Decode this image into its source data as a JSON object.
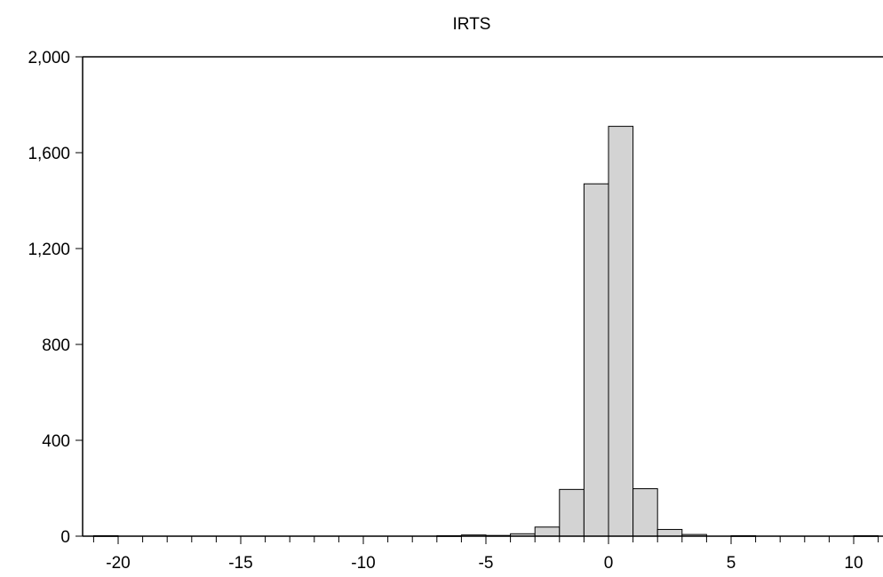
{
  "chart_data": {
    "type": "bar",
    "subtype": "histogram",
    "title": "IRTS",
    "xlabel": "",
    "ylabel": "",
    "xlim": [
      -21.5,
      11
    ],
    "ylim": [
      0,
      2000
    ],
    "x_ticks": [
      -20,
      -15,
      -10,
      -5,
      0,
      5,
      10
    ],
    "x_tick_labels": [
      "-20",
      "-15",
      "-10",
      "-5",
      "0",
      "5",
      "10"
    ],
    "y_ticks": [
      0,
      400,
      800,
      1200,
      1600,
      2000
    ],
    "y_tick_labels": [
      "0",
      "400",
      "800",
      "1,200",
      "1,600",
      "2,000"
    ],
    "bin_width": 1,
    "bins": [
      {
        "start": -21,
        "end": -20,
        "count": 2
      },
      {
        "start": -7,
        "end": -6,
        "count": 2
      },
      {
        "start": -6,
        "end": -5,
        "count": 5
      },
      {
        "start": -5,
        "end": -4,
        "count": 3
      },
      {
        "start": -4,
        "end": -3,
        "count": 10
      },
      {
        "start": -3,
        "end": -2,
        "count": 38
      },
      {
        "start": -2,
        "end": -1,
        "count": 195
      },
      {
        "start": -1,
        "end": 0,
        "count": 1470
      },
      {
        "start": 0,
        "end": 1,
        "count": 1710
      },
      {
        "start": 1,
        "end": 2,
        "count": 198
      },
      {
        "start": 2,
        "end": 3,
        "count": 28
      },
      {
        "start": 3,
        "end": 4,
        "count": 7
      },
      {
        "start": 5,
        "end": 6,
        "count": 2
      },
      {
        "start": 10,
        "end": 11,
        "count": 2
      }
    ],
    "grid": false,
    "legend": "none",
    "bar_color": "#d3d3d3",
    "bar_edge_color": "#000000"
  }
}
